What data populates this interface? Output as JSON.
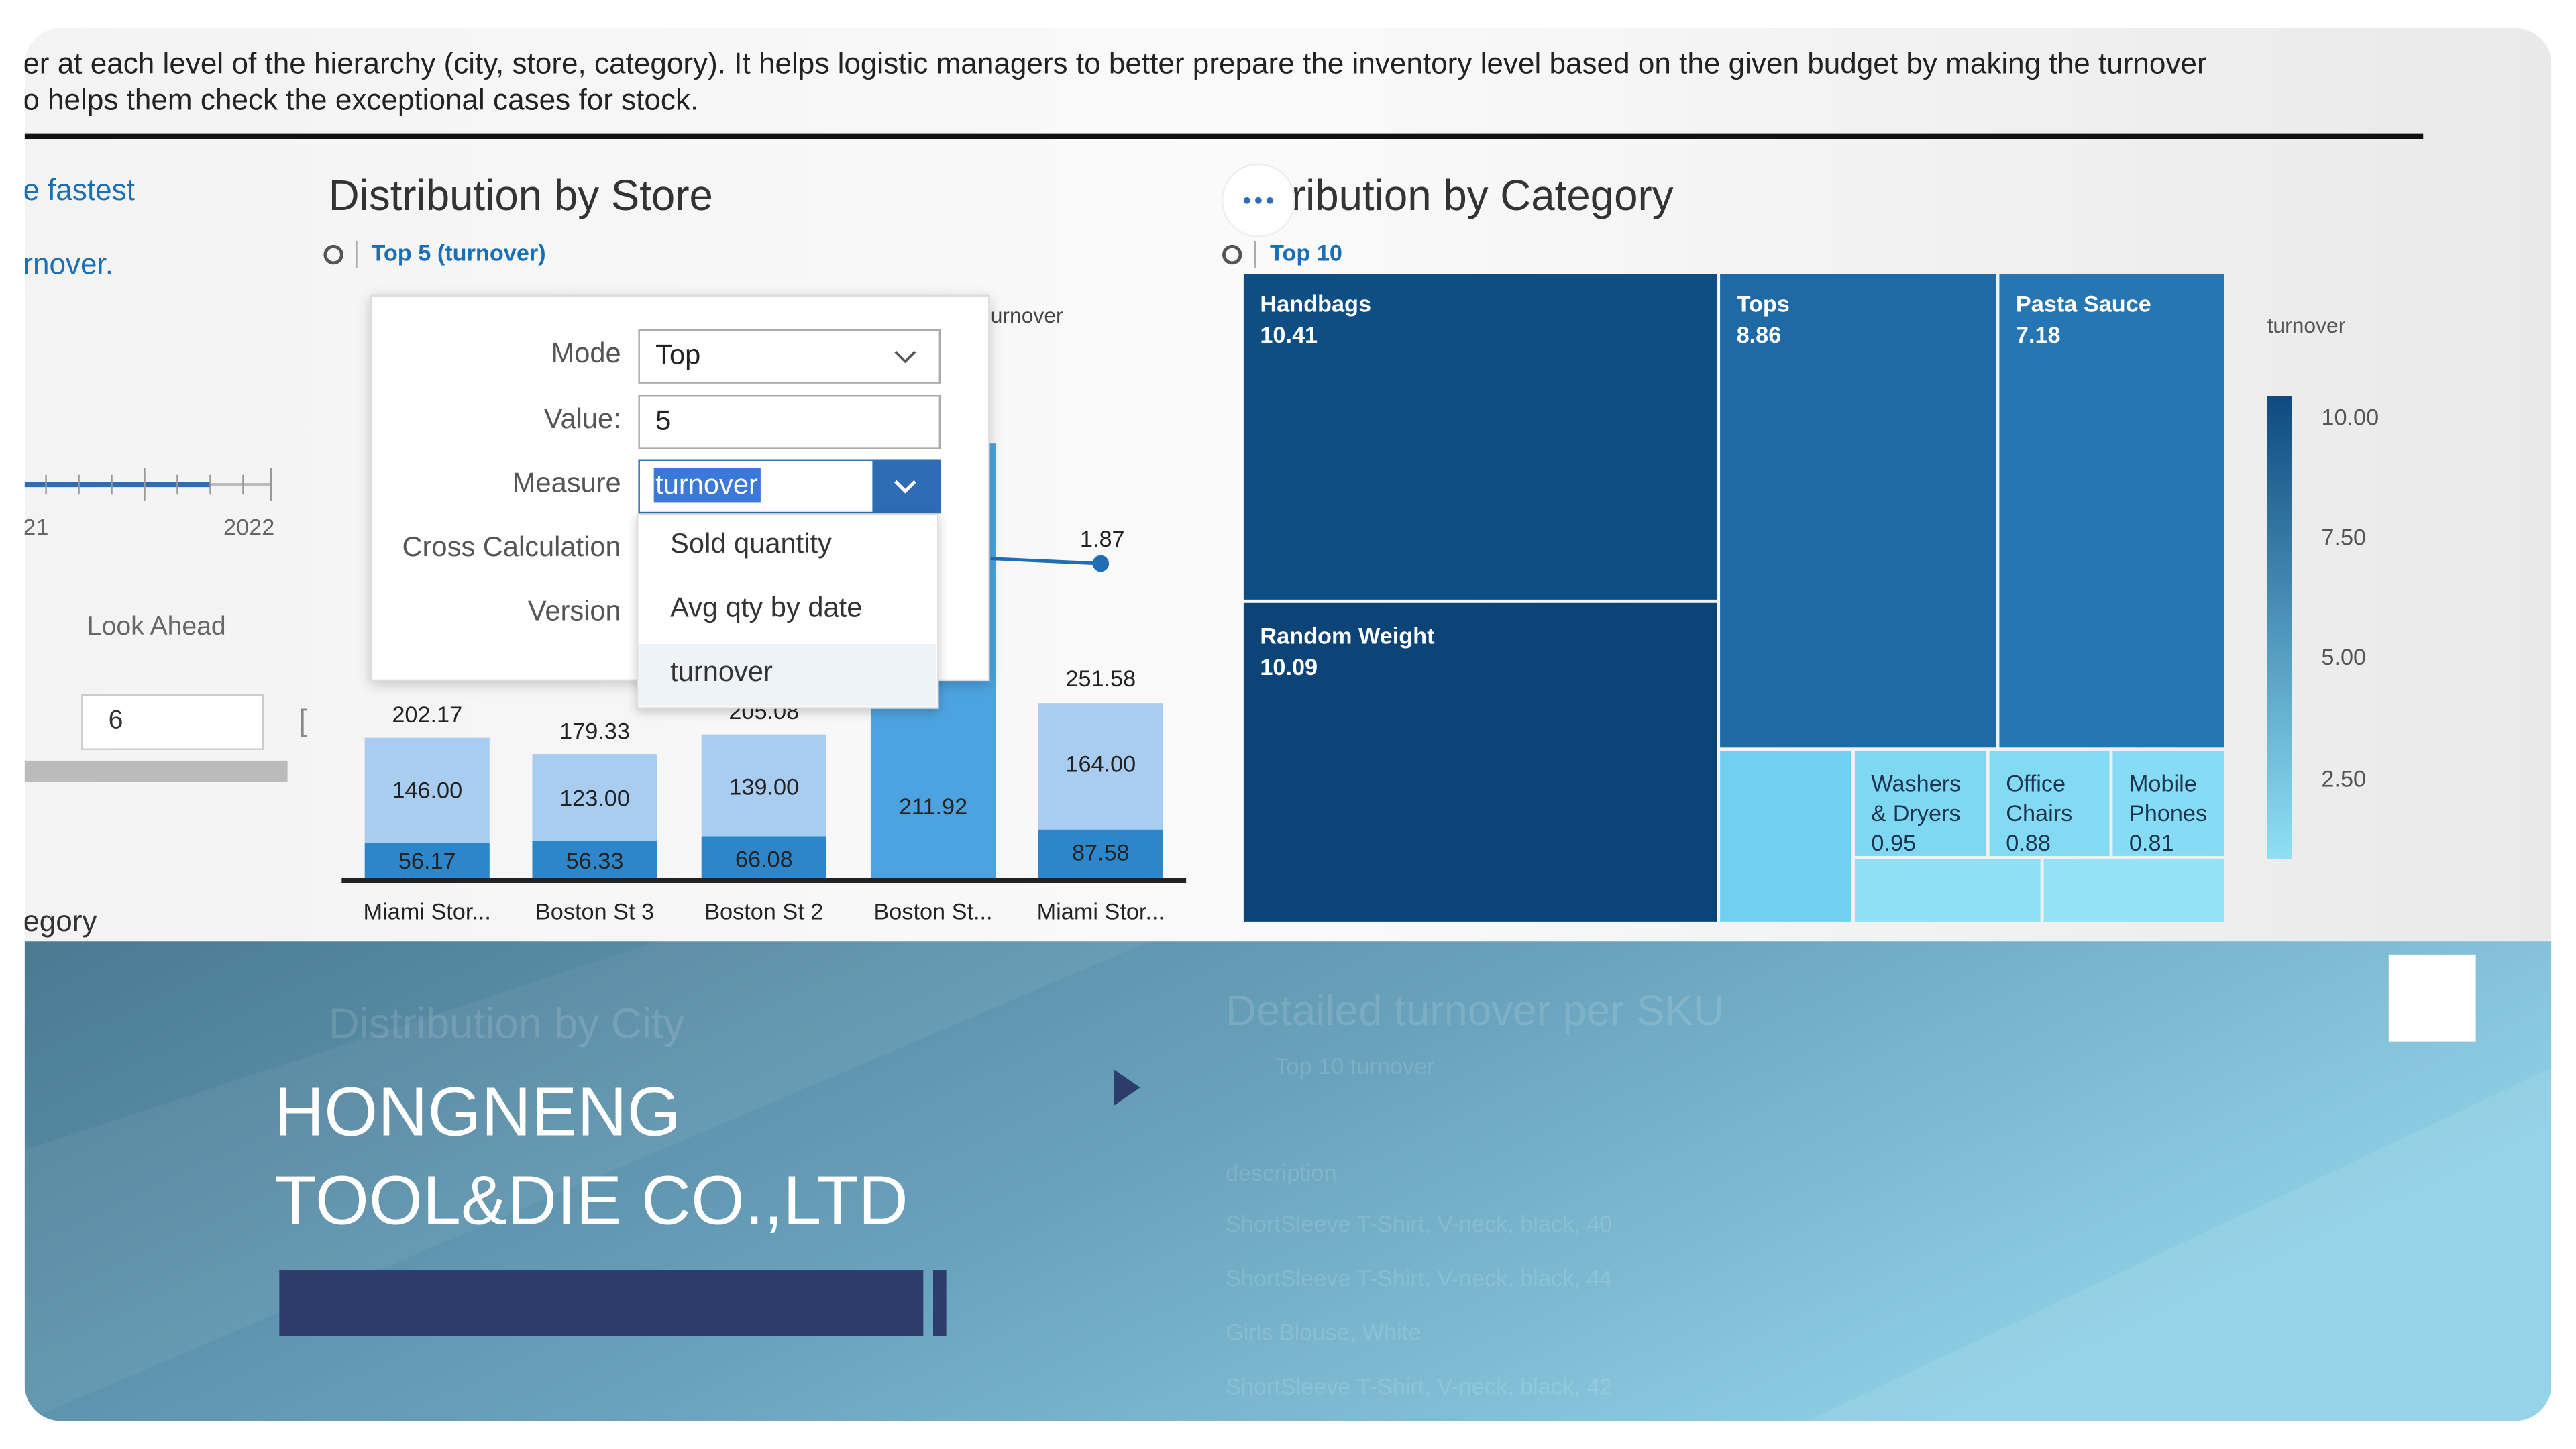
{
  "header": {
    "lines": [
      "er at each level of the hierarchy (city, store, category). It helps logistic managers to better prepare the inventory level based on the given budget by making the turnover",
      "o helps them check the exceptional cases for stock."
    ]
  },
  "left_panel": {
    "texts": [
      "e fastest",
      "rnover."
    ],
    "axis_labels": [
      "21",
      "2022"
    ],
    "look_ahead_label": "Look Ahead",
    "look_ahead_value": "6",
    "footer": "egory"
  },
  "store_chart": {
    "title": "Distribution by Store",
    "subtitle": "Top 5 (turnover)",
    "legend": "urnover",
    "line_label": "1.87",
    "bars": [
      {
        "category": "Miami Stor...",
        "total": "202.17",
        "upper": "146.00",
        "lower": "56.17"
      },
      {
        "category": "Boston St 3",
        "total": "179.33",
        "upper": "123.00",
        "lower": "56.33"
      },
      {
        "category": "Boston St 2",
        "total": "205.08",
        "upper": "139.00",
        "lower": "66.08"
      },
      {
        "category": "Boston St...",
        "single": "211.92"
      },
      {
        "category": "Miami Stor...",
        "total": "251.58",
        "upper": "164.00",
        "lower": "87.58"
      }
    ]
  },
  "popup": {
    "labels": [
      "Mode",
      "Value:",
      "Measure",
      "Cross Calculation",
      "Version"
    ],
    "mode": "Top",
    "value": "5",
    "measure": "turnover",
    "options": [
      "Sold quantity",
      "Avg qty by date",
      "turnover"
    ]
  },
  "category_chart": {
    "title": "ribution by Category",
    "subtitle": "Top 10",
    "legend_title": "turnover",
    "legend_ticks": [
      "10.00",
      "7.50",
      "5.00",
      "2.50"
    ],
    "tiles": [
      {
        "name": "Handbags",
        "value": "10.41"
      },
      {
        "name": "Random Weight",
        "value": "10.09"
      },
      {
        "name": "Tops",
        "value": "8.86"
      },
      {
        "name": "Pasta Sauce",
        "value": "7.18"
      },
      {
        "name": [
          "Washers",
          "& Dryers"
        ],
        "value": "0.95"
      },
      {
        "name": [
          "Office",
          "Chairs"
        ],
        "value": "0.88"
      },
      {
        "name": [
          "Mobile",
          "Phones"
        ],
        "value": "0.81"
      }
    ]
  },
  "overlay": {
    "company": [
      "HONGNENG",
      "TOOL&DIE CO.,LTD"
    ],
    "faded": [
      "Distribution by City",
      "Detailed turnover per SKU",
      "Top 10 turnover",
      "description",
      "ShortSleeve T-Shirt, V-neck, black, 40",
      "ShortSleeve T-Shirt, V-neck, black, 44",
      "Girls Blouse, White",
      "ShortSleeve T-Shirt, V-neck, black, 42"
    ]
  }
}
